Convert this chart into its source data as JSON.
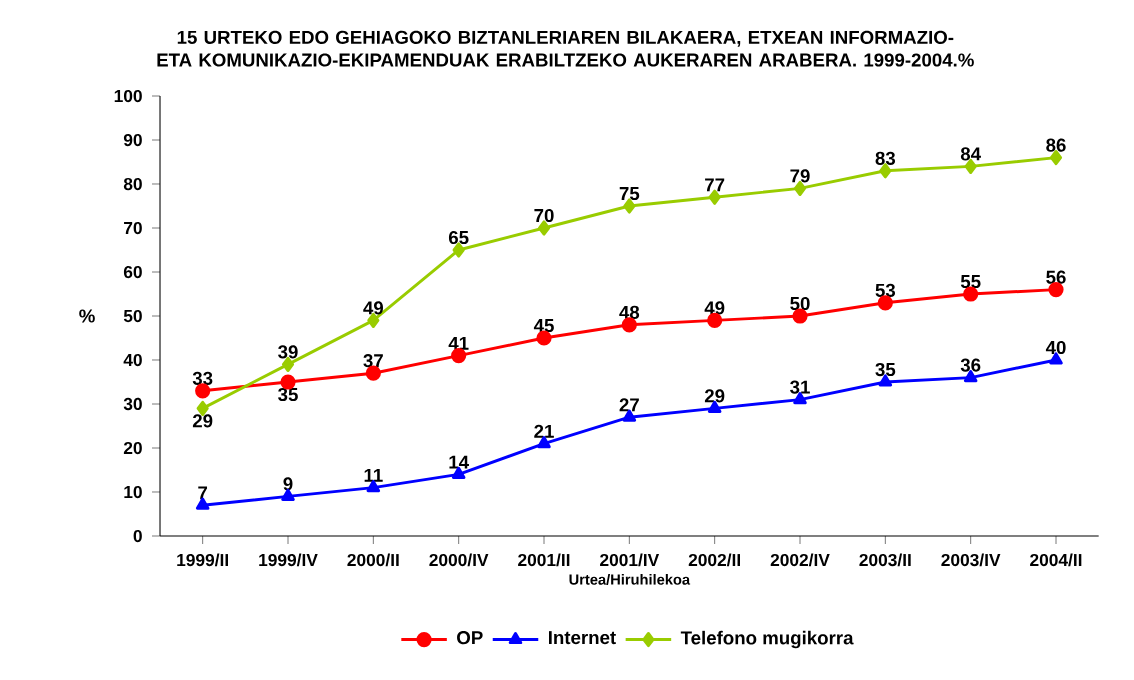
{
  "chart_data": {
    "type": "line",
    "title": "15 URTEKO EDO GEHIAGOKO BIZTANLERIAREN BILAKAERA, ETXEAN INFORMAZIO- ETA KOMUNIKAZIO-EKIPAMENDUAK ERABILTZEKO AUKERAREN ARABERA. 1999-2004.%",
    "xlabel": "Urtea/Hiruhilekoa",
    "ylabel": "%",
    "categories": [
      "1999/II",
      "1999/IV",
      "2000/II",
      "2000/IV",
      "2001/II",
      "2001/IV",
      "2002/II",
      "2002/IV",
      "2003/II",
      "2003/IV",
      "2004/II"
    ],
    "series": [
      {
        "name": "OP",
        "color": "#ff0000",
        "marker": "circle",
        "values": [
          33,
          35,
          37,
          41,
          45,
          48,
          49,
          50,
          53,
          55,
          56
        ]
      },
      {
        "name": "Internet",
        "color": "#0000ff",
        "marker": "triangle",
        "values": [
          7,
          9,
          11,
          14,
          21,
          27,
          29,
          31,
          35,
          36,
          40
        ]
      },
      {
        "name": "Telefono mugikorra",
        "color": "#99cc00",
        "marker": "diamond",
        "values": [
          29,
          39,
          49,
          65,
          70,
          75,
          77,
          79,
          83,
          84,
          86
        ]
      }
    ],
    "ylim": [
      0,
      100
    ],
    "yticks": [
      0,
      10,
      20,
      30,
      40,
      50,
      60,
      70,
      80,
      90,
      100
    ],
    "grid": false,
    "legend": "bottom",
    "data_labels": true,
    "line_style": "solid"
  }
}
